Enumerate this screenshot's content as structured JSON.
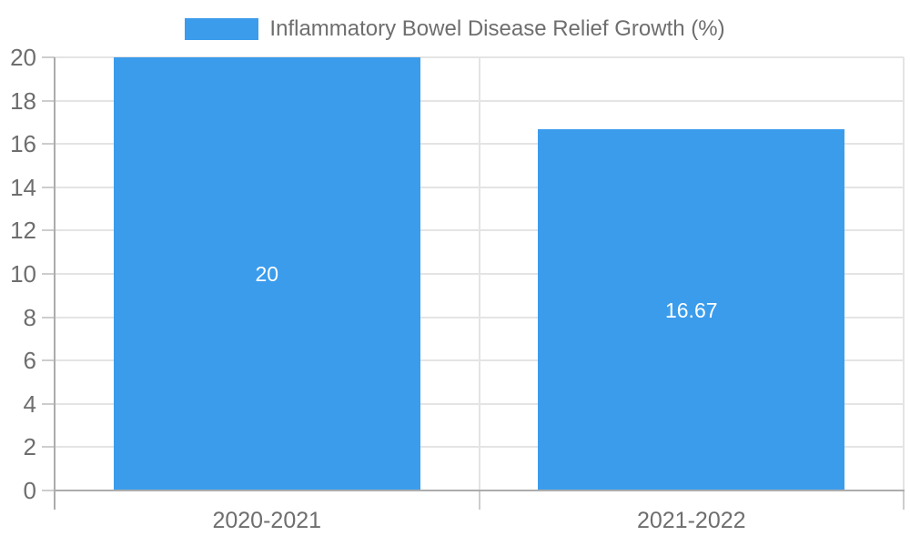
{
  "legend": {
    "position": "top",
    "label": "Inflammatory Bowel Disease Relief Growth (%)"
  },
  "chart_data": {
    "type": "bar",
    "title": "Inflammatory Bowel Disease Relief Growth (%)",
    "categories": [
      "2020-2021",
      "2021-2022"
    ],
    "values": [
      20,
      16.67
    ],
    "value_labels": [
      "20",
      "16.67"
    ],
    "xlabel": "",
    "ylabel": "",
    "ylim": [
      0,
      20
    ],
    "yticks": [
      0,
      2,
      4,
      6,
      8,
      10,
      12,
      14,
      16,
      18,
      20
    ],
    "grid": "on",
    "legend_position": "top",
    "bar_color": "#3B9CEC",
    "colors": {
      "bar": "#3B9CEC",
      "text": "#6E6E6E",
      "value_label": "#FFFFFF",
      "grid": "#E4E4E4",
      "axis": "#ACACAC",
      "tick": "#CDCDCD",
      "background": "#FFFFFF"
    }
  }
}
